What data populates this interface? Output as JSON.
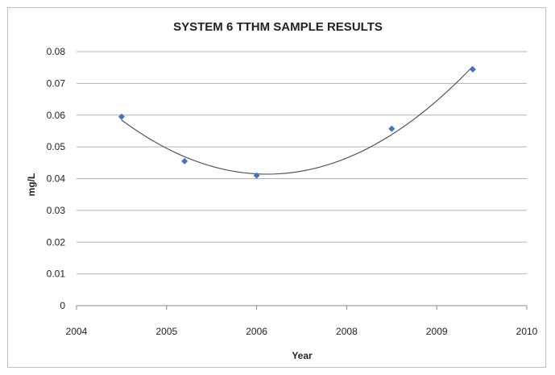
{
  "chart_data": {
    "type": "scatter",
    "title": "SYSTEM 6 TTHM SAMPLE RESULTS",
    "xlabel": "Year",
    "ylabel": "mg/L",
    "x_tick_labels": [
      "2004",
      "2005",
      "2006",
      "2008",
      "2009",
      "2010"
    ],
    "y_ticks": [
      0,
      0.01,
      0.02,
      0.03,
      0.04,
      0.05,
      0.06,
      0.07,
      0.08
    ],
    "y_tick_labels": [
      "0",
      "0.01",
      "0.02",
      "0.03",
      "0.04",
      "0.05",
      "0.06",
      "0.07",
      "0.08"
    ],
    "ylim": [
      0,
      0.08
    ],
    "grid": true,
    "legend": "none",
    "trendline": "polynomial",
    "series": [
      {
        "x_positions": [
          0.5,
          1.2,
          2.0,
          3.5,
          4.4
        ],
        "values": [
          0.0595,
          0.0455,
          0.041,
          0.0557,
          0.0744
        ],
        "color": "#4472c4"
      }
    ],
    "trendline_color": "#555555"
  }
}
